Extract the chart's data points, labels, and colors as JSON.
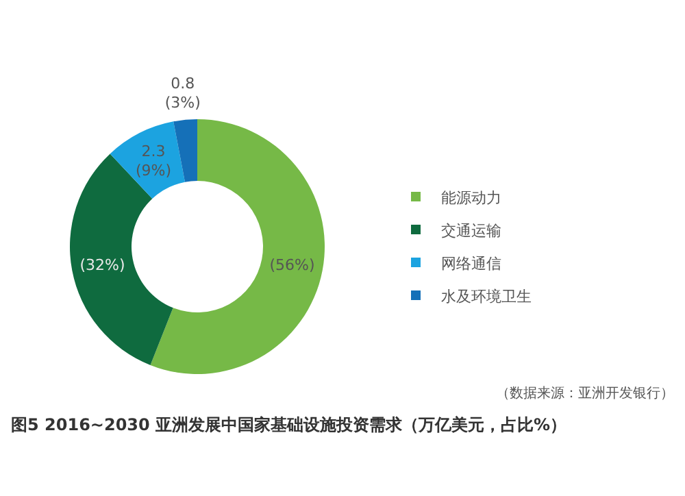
{
  "chart_data": {
    "type": "donut",
    "title": "图5   2016~2030 亚洲发展中国家基础设施投资需求（万亿美元，占比%）",
    "categories": [
      "能源动力",
      "交通运输",
      "网络通信",
      "水及环境卫生"
    ],
    "values": [
      56,
      32,
      9,
      3
    ],
    "value_labels": [
      "(56%)",
      "(32%)",
      "2.3\n(9%)",
      "0.8\n(3%)"
    ],
    "colors": [
      "#76b947",
      "#0f6b3f",
      "#1ca3e0",
      "#1570b8"
    ],
    "legend": "right",
    "annotations": [
      "（数据来源：亚洲开发银行）"
    ]
  }
}
